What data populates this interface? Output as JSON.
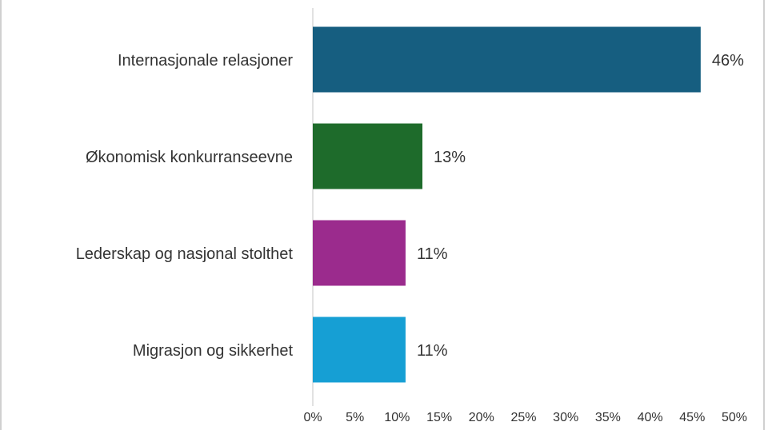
{
  "chart_data": {
    "type": "hbar",
    "categories": [
      "Internasjonale relasjoner",
      "Økonomisk konkurranseevne",
      "Lederskap og nasjonal stolthet",
      "Migrasjon og sikkerhet"
    ],
    "values": [
      46,
      13,
      11,
      11
    ],
    "value_labels": [
      "46%",
      "13%",
      "11%",
      "11%"
    ],
    "colors": [
      "#165e80",
      "#1e6b2b",
      "#9b2b8d",
      "#169fd4"
    ],
    "xlim": [
      0,
      50
    ],
    "xticks": [
      {
        "value": 0,
        "label": "0%"
      },
      {
        "value": 5,
        "label": "5%"
      },
      {
        "value": 10,
        "label": "10%"
      },
      {
        "value": 15,
        "label": "15%"
      },
      {
        "value": 20,
        "label": "20%"
      },
      {
        "value": 25,
        "label": "25%"
      },
      {
        "value": 30,
        "label": "30%"
      },
      {
        "value": 35,
        "label": "35%"
      },
      {
        "value": 40,
        "label": "40%"
      },
      {
        "value": 45,
        "label": "45%"
      },
      {
        "value": 50,
        "label": "50%"
      }
    ]
  }
}
